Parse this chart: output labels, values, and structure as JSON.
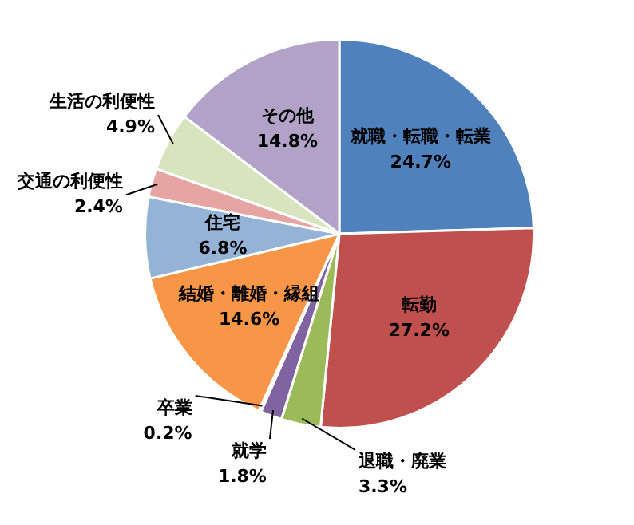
{
  "chart_data": {
    "type": "pie",
    "categories": [
      "就職・転職・転業",
      "転勤",
      "退職・廃業",
      "就学",
      "卒業",
      "結婚・離婚・縁組",
      "住宅",
      "交通の利便性",
      "生活の利便性",
      "その他"
    ],
    "values": [
      24.7,
      27.2,
      3.3,
      1.8,
      0.2,
      14.6,
      6.8,
      2.4,
      4.9,
      14.8
    ],
    "value_labels": [
      "24.7%",
      "27.2%",
      "3.3%",
      "1.8%",
      "0.2%",
      "14.6%",
      "6.8%",
      "2.4%",
      "4.9%",
      "14.8%"
    ],
    "colors": [
      "#4f81bd",
      "#c0504d",
      "#9bbb59",
      "#8064a2",
      "#ffffff",
      "#f79646",
      "#95b3d7",
      "#e6a5a3",
      "#d7e4bd",
      "#b3a2c7"
    ],
    "legend": false
  }
}
